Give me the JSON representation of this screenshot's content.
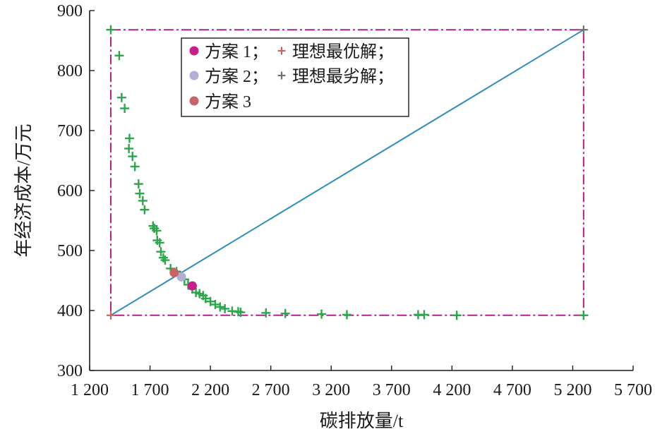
{
  "chart_data": {
    "type": "scatter",
    "xlabel": "碳排放量/t",
    "ylabel": "年经济成本/万元",
    "xlim": [
      1200,
      5700
    ],
    "ylim": [
      300,
      900
    ],
    "x_ticks": [
      1200,
      1700,
      2200,
      2700,
      3200,
      3700,
      4200,
      4700,
      5200,
      5700
    ],
    "x_tick_labels": [
      "1 200",
      "1 700",
      "2 200",
      "2 700",
      "3 200",
      "3 700",
      "4 200",
      "4 700",
      "5 200",
      "5 700"
    ],
    "y_ticks": [
      300,
      400,
      500,
      600,
      700,
      800,
      900
    ],
    "y_tick_labels": [
      "300",
      "400",
      "500",
      "600",
      "700",
      "800",
      "900"
    ],
    "grid": false,
    "legend_position": "top-left",
    "colors": {
      "pareto": "#2aa74a",
      "scheme1": "#c81e8c",
      "scheme2": "#b3aed6",
      "scheme3": "#c96464",
      "ideal": "#c96464",
      "worst": "#707070",
      "diagonal": "#2e8bc0",
      "boundary": "#b0208a",
      "axis": "#1a1a1a"
    },
    "pareto_front": [
      [
        1375,
        868
      ],
      [
        1445,
        825
      ],
      [
        1465,
        755
      ],
      [
        1490,
        737
      ],
      [
        1530,
        687
      ],
      [
        1525,
        670
      ],
      [
        1555,
        657
      ],
      [
        1575,
        640
      ],
      [
        1605,
        611
      ],
      [
        1615,
        595
      ],
      [
        1640,
        583
      ],
      [
        1655,
        568
      ],
      [
        1725,
        541
      ],
      [
        1735,
        537
      ],
      [
        1755,
        533
      ],
      [
        1760,
        517
      ],
      [
        1780,
        513
      ],
      [
        1790,
        498
      ],
      [
        1810,
        488
      ],
      [
        1825,
        484
      ],
      [
        1870,
        470
      ],
      [
        1920,
        465
      ],
      [
        1950,
        458
      ],
      [
        1985,
        452
      ],
      [
        2015,
        443
      ],
      [
        2050,
        436
      ],
      [
        2080,
        430
      ],
      [
        2110,
        428
      ],
      [
        2140,
        425
      ],
      [
        2160,
        420
      ],
      [
        2200,
        415
      ],
      [
        2240,
        410
      ],
      [
        2280,
        406
      ],
      [
        2320,
        403
      ],
      [
        2380,
        399
      ],
      [
        2430,
        398
      ],
      [
        2450,
        397
      ],
      [
        2660,
        396
      ],
      [
        2820,
        395
      ],
      [
        3120,
        394
      ],
      [
        3330,
        393
      ],
      [
        3920,
        393
      ],
      [
        3970,
        393
      ],
      [
        4240,
        392
      ],
      [
        5290,
        392
      ]
    ],
    "schemes": [
      {
        "name": "方案 1",
        "x": 2050,
        "y": 441
      },
      {
        "name": "方案 2",
        "x": 1960,
        "y": 456
      },
      {
        "name": "方案 3",
        "x": 1900,
        "y": 463
      }
    ],
    "ideal_point": {
      "name": "理想最优解",
      "x": 1375,
      "y": 392
    },
    "worst_point": {
      "name": "理想最劣解",
      "x": 5290,
      "y": 868
    },
    "bounding_box": {
      "x_min": 1375,
      "x_max": 5290,
      "y_min": 392,
      "y_max": 868
    },
    "legend": [
      {
        "label": "方案 1；",
        "marker": "dot",
        "color_key": "scheme1"
      },
      {
        "label": "理想最优解；",
        "marker": "plus",
        "color_key": "ideal"
      },
      {
        "label": "方案 2；",
        "marker": "dot",
        "color_key": "scheme2"
      },
      {
        "label": "理想最劣解；",
        "marker": "plus",
        "color_key": "worst"
      },
      {
        "label": "方案 3",
        "marker": "dot",
        "color_key": "scheme3"
      }
    ]
  }
}
